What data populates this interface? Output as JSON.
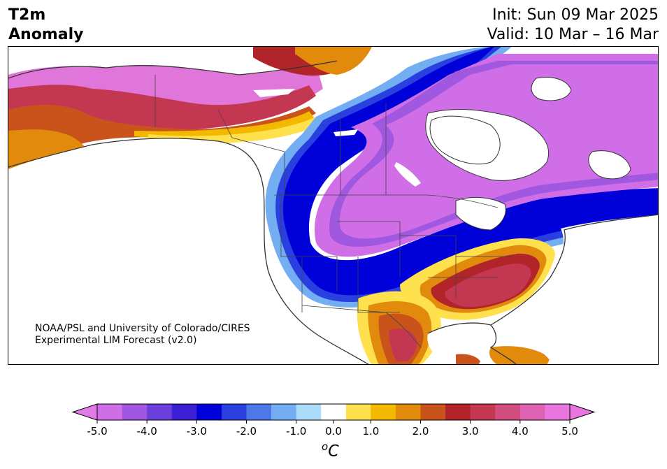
{
  "title": {
    "variable": "T2m",
    "subtitle": "Anomaly",
    "init": "Init: Sun 09 Mar 2025",
    "valid": "Valid: 10 Mar – 16 Mar"
  },
  "credit": {
    "line1": "NOAA/PSL and University of Colorado/CIRES",
    "line2": "Experimental LIM Forecast (v2.0)"
  },
  "colorbar": {
    "unit_superscript": "o",
    "unit": "C",
    "tick_labels": [
      "-5.0",
      "-4.0",
      "-3.0",
      "-2.0",
      "-1.0",
      "0.0",
      "1.0",
      "2.0",
      "3.0",
      "4.0",
      "5.0"
    ],
    "bins": [
      -5.0,
      -4.5,
      -4.0,
      -3.5,
      -3.0,
      -2.5,
      -2.0,
      -1.5,
      -1.0,
      -0.5,
      0.5,
      1.0,
      1.5,
      2.0,
      2.5,
      3.0,
      3.5,
      4.0,
      4.5,
      5.0
    ],
    "colors": [
      "#d06ee8",
      "#a158e0",
      "#6b3fdc",
      "#3a1fd4",
      "#0000d8",
      "#2a3fe0",
      "#4d78e8",
      "#73aef2",
      "#acdcfb",
      "#ffffff",
      "#ffe14e",
      "#f3b900",
      "#e18a0c",
      "#c9531a",
      "#b0242a",
      "#c33850",
      "#d04d7e",
      "#de63b2",
      "#e876dc"
    ],
    "extend_low_color": "#e07be6",
    "extend_high_color": "#e876dc"
  },
  "map": {
    "region": "North America",
    "field": "2-m temperature anomaly",
    "background": "#ffffff",
    "coastline_color": "#333333",
    "border_color": "#3a3a3a"
  }
}
